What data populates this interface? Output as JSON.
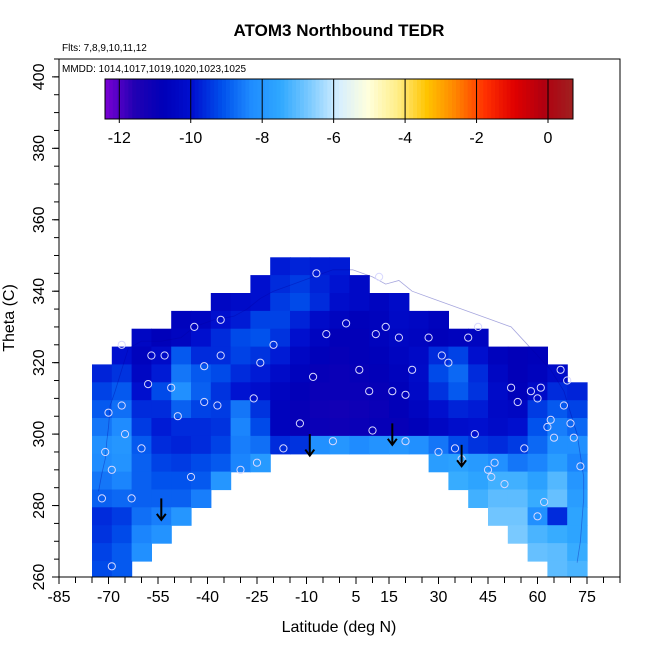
{
  "chart_data": {
    "type": "heatmap",
    "title": "ATOM3 Northbound TEDR",
    "annotation_flights": "Flts: 7,8,9,10,11,12",
    "annotation_dates": "MMDD: 1014,1017,1019,1020,1023,1025",
    "xlabel": "Latitude (deg N)",
    "ylabel": "Theta (C)",
    "xlim": [
      -85,
      85
    ],
    "ylim": [
      260,
      405
    ],
    "x_ticks": [
      -85,
      -70,
      -55,
      -40,
      -25,
      -10,
      5,
      15,
      30,
      45,
      60,
      75
    ],
    "y_ticks": [
      260,
      280,
      300,
      320,
      340,
      360,
      380,
      400
    ],
    "colorbar": {
      "ticks": [
        -12,
        -10,
        -8,
        -6,
        -4,
        -2,
        0
      ],
      "range": [
        -12.4,
        0.7
      ],
      "colors": [
        "#7b00d4",
        "#2200b3",
        "#0000b8",
        "#0010d0",
        "#0050ec",
        "#1f8cff",
        "#2fa8ff",
        "#7ccaff",
        "#d6efff",
        "#ffffdc",
        "#ffee88",
        "#ffc400",
        "#ff8400",
        "#ff3000",
        "#e00000",
        "#b00010",
        "#a02020"
      ]
    },
    "field_rows": [
      {
        "theta": 347,
        "values": [
          null,
          null,
          null,
          null,
          null,
          null,
          null,
          null,
          null,
          -9.8,
          -9.7,
          -9.8,
          -9.8,
          null,
          null,
          null,
          null,
          null,
          null,
          null,
          null,
          null,
          null,
          null,
          null
        ]
      },
      {
        "theta": 342,
        "values": [
          null,
          null,
          null,
          null,
          null,
          null,
          null,
          null,
          -10.0,
          -9.6,
          -9.4,
          -9.7,
          -9.9,
          -10.3,
          null,
          null,
          null,
          null,
          null,
          null,
          null,
          null,
          null,
          null,
          null
        ]
      },
      {
        "theta": 337,
        "values": [
          null,
          null,
          null,
          null,
          null,
          null,
          -10.4,
          -10.2,
          -10.0,
          -9.4,
          -9.2,
          -9.6,
          -10.1,
          -10.3,
          -10.5,
          -10.2,
          null,
          null,
          null,
          null,
          null,
          null,
          null,
          null,
          null
        ]
      },
      {
        "theta": 332,
        "values": [
          null,
          null,
          null,
          null,
          -10.6,
          -10.5,
          -10.0,
          -9.8,
          -9.3,
          -9.3,
          -9.7,
          -10.2,
          -10.5,
          -10.7,
          -10.6,
          -10.3,
          -10.4,
          -10.6,
          null,
          null,
          null,
          null,
          null,
          null,
          null
        ]
      },
      {
        "theta": 327,
        "values": [
          null,
          null,
          -10.4,
          -10.7,
          -10.5,
          -10.0,
          -9.6,
          -9.2,
          -9.1,
          -9.5,
          -10.0,
          -10.5,
          -10.8,
          -10.8,
          -10.6,
          -10.4,
          -10.5,
          -10.7,
          -10.6,
          -10.5,
          null,
          null,
          null,
          null,
          null
        ]
      },
      {
        "theta": 322,
        "values": [
          null,
          -10.0,
          -10.6,
          -10.2,
          -9.0,
          -9.6,
          -9.6,
          -9.3,
          -9.5,
          -9.8,
          -10.4,
          -10.7,
          -10.9,
          -10.8,
          -10.7,
          -10.5,
          -10.3,
          -9.6,
          -9.3,
          -10.0,
          -10.6,
          -10.8,
          -10.7,
          null,
          null
        ]
      },
      {
        "theta": 317,
        "values": [
          -9.7,
          -9.5,
          -10.4,
          -9.8,
          -8.6,
          -9.0,
          -9.2,
          -9.6,
          -9.8,
          -10.2,
          -10.6,
          -10.9,
          -11.0,
          -10.9,
          -10.8,
          -10.6,
          -10.2,
          -9.2,
          -8.8,
          -9.6,
          -10.4,
          -10.8,
          -10.6,
          -10.2,
          null
        ]
      },
      {
        "theta": 312,
        "values": [
          -9.3,
          -9.0,
          -10.0,
          -9.2,
          -8.2,
          -8.9,
          -9.5,
          -9.9,
          -10.1,
          -10.5,
          -10.8,
          -11.0,
          -11.0,
          -11.0,
          -10.9,
          -10.7,
          -10.3,
          -9.5,
          -9.0,
          -9.5,
          -10.2,
          -10.7,
          -10.2,
          -9.6,
          -9.7
        ]
      },
      {
        "theta": 307,
        "values": [
          -9.0,
          -8.7,
          -9.6,
          -9.6,
          -8.9,
          -9.3,
          -9.4,
          -8.6,
          -9.5,
          -10.6,
          -10.9,
          -11.1,
          -11.2,
          -11.1,
          -11.0,
          -10.8,
          -10.5,
          -10.0,
          -9.7,
          -9.8,
          -10.3,
          -10.4,
          -9.4,
          -9.0,
          -9.3
        ]
      },
      {
        "theta": 302,
        "values": [
          -8.6,
          -8.3,
          -9.4,
          -9.8,
          -9.6,
          -9.6,
          -9.5,
          -8.4,
          -9.2,
          -10.6,
          -10.9,
          -11.0,
          -11.1,
          -11.0,
          -10.9,
          -10.9,
          -10.7,
          -10.4,
          -10.1,
          -10.0,
          -10.2,
          -10.0,
          -9.1,
          -8.5,
          -8.8
        ]
      },
      {
        "theta": 297,
        "values": [
          -8.2,
          -8.0,
          -9.0,
          -9.6,
          -9.7,
          -9.6,
          -9.3,
          -8.5,
          -8.7,
          -9.6,
          -9.5,
          -8.2,
          -8.0,
          -8.3,
          -8.1,
          -8.0,
          -8.2,
          -8.6,
          -9.2,
          -9.5,
          -9.6,
          -9.4,
          -8.8,
          -8.2,
          -8.2
        ]
      },
      {
        "theta": 292,
        "values": [
          -8.3,
          -8.1,
          -8.9,
          -9.3,
          -9.4,
          -9.2,
          -9.0,
          -8.4,
          -7.9,
          null,
          null,
          null,
          null,
          null,
          null,
          null,
          null,
          -7.8,
          -7.7,
          -7.9,
          -8.2,
          -8.6,
          -8.4,
          -7.8,
          -8.4
        ]
      },
      {
        "theta": 287,
        "values": [
          -8.6,
          -8.4,
          -8.9,
          -9.1,
          -9.1,
          -9.0,
          -8.0,
          null,
          null,
          null,
          null,
          null,
          null,
          null,
          null,
          null,
          null,
          null,
          -7.4,
          -7.6,
          -7.3,
          -7.3,
          -7.7,
          -7.1,
          -8.0
        ]
      },
      {
        "theta": 282,
        "values": [
          -8.9,
          -8.8,
          -8.9,
          -8.9,
          -8.9,
          -8.5,
          null,
          null,
          null,
          null,
          null,
          null,
          null,
          null,
          null,
          null,
          null,
          null,
          null,
          -7.3,
          -7.0,
          -7.0,
          -7.4,
          -6.9,
          -7.8
        ]
      },
      {
        "theta": 277,
        "values": [
          -9.6,
          -9.4,
          -8.7,
          -8.5,
          -8.0,
          null,
          null,
          null,
          null,
          null,
          null,
          null,
          null,
          null,
          null,
          null,
          null,
          null,
          null,
          null,
          -6.8,
          -6.8,
          -8.2,
          -9.6,
          -7.6
        ]
      },
      {
        "theta": 272,
        "values": [
          -9.5,
          -9.2,
          -8.4,
          -8.1,
          null,
          null,
          null,
          null,
          null,
          null,
          null,
          null,
          null,
          null,
          null,
          null,
          null,
          null,
          null,
          null,
          null,
          -6.7,
          -7.2,
          -7.4,
          -7.6
        ]
      },
      {
        "theta": 267,
        "values": [
          -9.3,
          -9.0,
          -8.2,
          null,
          null,
          null,
          null,
          null,
          null,
          null,
          null,
          null,
          null,
          null,
          null,
          null,
          null,
          null,
          null,
          null,
          null,
          null,
          -6.9,
          -7.0,
          -7.4
        ]
      },
      {
        "theta": 262,
        "values": [
          -9.2,
          -9.0,
          null,
          null,
          null,
          null,
          null,
          null,
          null,
          null,
          null,
          null,
          null,
          null,
          null,
          null,
          null,
          null,
          null,
          null,
          null,
          null,
          null,
          -7.0,
          -7.2
        ]
      }
    ],
    "field_lat_start": -72,
    "field_lat_step": 6,
    "flight_tracks": [
      [
        -73,
        284
      ],
      [
        -72,
        289
      ],
      [
        -71,
        293
      ],
      [
        -70.5,
        298
      ],
      [
        -70,
        302
      ],
      [
        -69.5,
        308
      ],
      [
        -68,
        312
      ],
      [
        -66,
        318
      ],
      [
        -64,
        324
      ],
      [
        -60,
        326
      ],
      [
        -54,
        326
      ],
      [
        -48,
        327
      ],
      [
        -44,
        330
      ],
      [
        -38,
        332
      ],
      [
        -32,
        333
      ],
      [
        -28,
        335
      ],
      [
        -24,
        338
      ],
      [
        -20,
        340
      ],
      [
        -14,
        342
      ],
      [
        -8,
        344
      ],
      [
        -2,
        346
      ],
      [
        4,
        346
      ],
      [
        10,
        344
      ],
      [
        14,
        342
      ],
      [
        18,
        343
      ],
      [
        22,
        340
      ],
      [
        28,
        338
      ],
      [
        34,
        336
      ],
      [
        40,
        334
      ],
      [
        46,
        332
      ],
      [
        52,
        330
      ],
      [
        56,
        326
      ],
      [
        60,
        322
      ],
      [
        64,
        318
      ],
      [
        68,
        312
      ],
      [
        70,
        306
      ],
      [
        72,
        300
      ],
      [
        73,
        294
      ],
      [
        74,
        288
      ],
      [
        74,
        282
      ],
      [
        73.5,
        276
      ],
      [
        73,
        270
      ],
      [
        72,
        264
      ]
    ],
    "observations": [
      [
        -70,
        306
      ],
      [
        -71,
        295
      ],
      [
        -69,
        290
      ],
      [
        -72,
        282
      ],
      [
        -66,
        308
      ],
      [
        -65,
        300
      ],
      [
        -63,
        282
      ],
      [
        -69,
        263
      ],
      [
        -66,
        325
      ],
      [
        -57,
        322
      ],
      [
        -53,
        322
      ],
      [
        -51,
        313
      ],
      [
        -44,
        330
      ],
      [
        -41,
        319
      ],
      [
        -41,
        309
      ],
      [
        -49,
        305
      ],
      [
        -37,
        308
      ],
      [
        -36,
        322
      ],
      [
        -36,
        332
      ],
      [
        -26,
        310
      ],
      [
        -25,
        292
      ],
      [
        -24,
        320
      ],
      [
        -20,
        325
      ],
      [
        -17,
        296
      ],
      [
        -12,
        303
      ],
      [
        -8,
        316
      ],
      [
        -7,
        345
      ],
      [
        -4,
        328
      ],
      [
        -2,
        298
      ],
      [
        2,
        331
      ],
      [
        6,
        318
      ],
      [
        9,
        312
      ],
      [
        10,
        301
      ],
      [
        11,
        328
      ],
      [
        12,
        344
      ],
      [
        14,
        330
      ],
      [
        16,
        312
      ],
      [
        18,
        327
      ],
      [
        20,
        298
      ],
      [
        20,
        311
      ],
      [
        22,
        318
      ],
      [
        27,
        327
      ],
      [
        30,
        295
      ],
      [
        31,
        322
      ],
      [
        33,
        320
      ],
      [
        37,
        293
      ],
      [
        39,
        327
      ],
      [
        42,
        330
      ],
      [
        45,
        290
      ],
      [
        47,
        292
      ],
      [
        50,
        286
      ],
      [
        52,
        313
      ],
      [
        54,
        309
      ],
      [
        56,
        296
      ],
      [
        58,
        312
      ],
      [
        60,
        310
      ],
      [
        61,
        313
      ],
      [
        63,
        302
      ],
      [
        64,
        304
      ],
      [
        65,
        299
      ],
      [
        67,
        318
      ],
      [
        68,
        308
      ],
      [
        69,
        315
      ],
      [
        70,
        303
      ],
      [
        71,
        299
      ],
      [
        73,
        291
      ],
      [
        62,
        281
      ],
      [
        60,
        277
      ],
      [
        46,
        288
      ],
      [
        41,
        300
      ],
      [
        -45,
        288
      ],
      [
        -30,
        290
      ],
      [
        35,
        296
      ],
      [
        -60,
        296
      ],
      [
        -58,
        314
      ]
    ],
    "arrows": [
      {
        "lat": -54,
        "theta_top": 282,
        "theta_tip": 276
      },
      {
        "lat": -9,
        "theta_top": 300,
        "theta_tip": 294
      },
      {
        "lat": 16,
        "theta_top": 303,
        "theta_tip": 297
      },
      {
        "lat": 37,
        "theta_top": 297,
        "theta_tip": 291
      }
    ]
  }
}
